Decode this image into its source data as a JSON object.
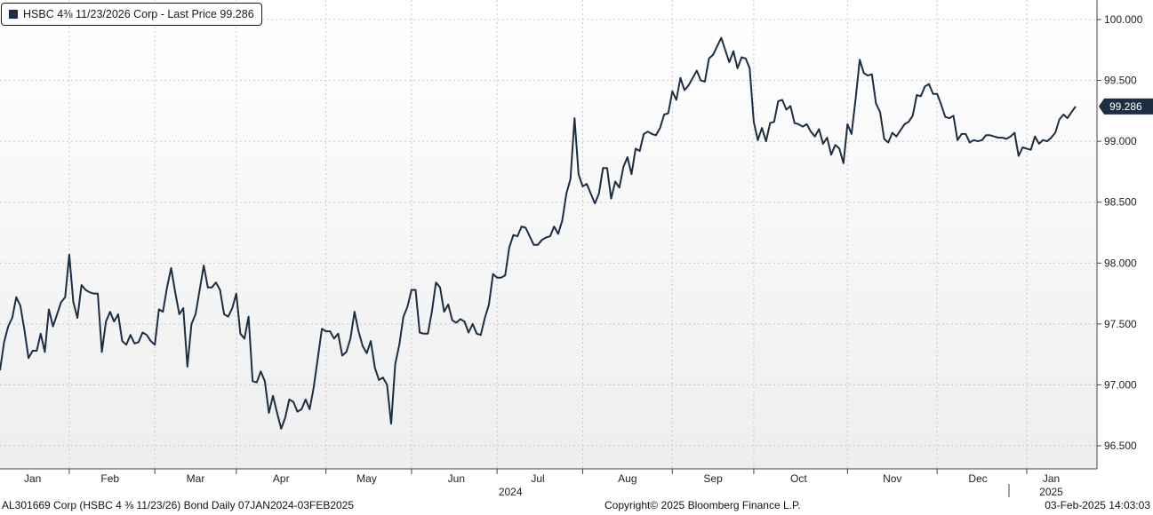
{
  "legend": {
    "label": "HSBC 4⅜ 11/23/2026 Corp - Last Price 99.286",
    "color": "#1c2e44"
  },
  "footer": {
    "left": "AL301669 Corp (HSBC 4 ⅜ 11/23/26) Bond  Daily 07JAN2024-03FEB2025",
    "center": "Copyright© 2025 Bloomberg Finance L.P.",
    "right": "03-Feb-2025 14:03:03"
  },
  "chart_data": {
    "type": "line",
    "ylim": [
      96.4,
      100.1
    ],
    "yticks": [
      96.5,
      97.0,
      97.5,
      98.0,
      98.5,
      99.0,
      99.5,
      100.0
    ],
    "ytick_labels": [
      "96.500",
      "97.000",
      "97.500",
      "98.000",
      "98.500",
      "99.000",
      "99.500",
      "100.000"
    ],
    "month_labels": [
      "Jan",
      "Feb",
      "Mar",
      "Apr",
      "May",
      "Jun",
      "Jul",
      "Aug",
      "Sep",
      "Oct",
      "Nov",
      "Dec",
      "Jan"
    ],
    "year_labels": [
      "2024",
      "2025"
    ],
    "grid": true,
    "last_value": 99.286,
    "last_value_label": "99.286",
    "line_color": "#1c2e44",
    "series": [
      {
        "values": [
          97.12,
          97.35,
          97.48,
          97.55,
          97.72,
          97.65,
          97.45,
          97.22,
          97.28,
          97.28,
          97.42,
          97.27,
          97.62,
          97.48,
          97.58,
          97.68,
          97.72,
          98.07,
          97.68,
          97.55,
          97.82,
          97.78,
          97.76,
          97.75,
          97.75,
          97.27,
          97.52,
          97.6,
          97.52,
          97.58,
          97.36,
          97.33,
          97.41,
          97.34,
          97.35,
          97.43,
          97.41,
          97.36,
          97.33,
          97.62,
          97.6,
          97.8,
          97.96,
          97.76,
          97.58,
          97.63,
          97.15,
          97.5,
          97.58,
          97.78,
          97.98,
          97.8,
          97.8,
          97.84,
          97.78,
          97.58,
          97.56,
          97.63,
          97.75,
          97.42,
          97.38,
          97.56,
          97.03,
          97.02,
          97.11,
          97.03,
          96.77,
          96.91,
          96.77,
          96.64,
          96.73,
          96.88,
          96.86,
          96.78,
          96.8,
          96.88,
          96.8,
          96.98,
          97.22,
          97.46,
          97.44,
          97.44,
          97.38,
          97.42,
          97.24,
          97.27,
          97.38,
          97.6,
          97.44,
          97.32,
          97.26,
          97.36,
          97.14,
          97.04,
          97.06,
          97.0,
          96.68,
          97.17,
          97.33,
          97.56,
          97.64,
          97.78,
          97.78,
          97.43,
          97.42,
          97.42,
          97.6,
          97.84,
          97.8,
          97.6,
          97.66,
          97.53,
          97.51,
          97.54,
          97.52,
          97.43,
          97.5,
          97.42,
          97.41,
          97.55,
          97.66,
          97.91,
          97.88,
          97.88,
          97.9,
          98.13,
          98.23,
          98.22,
          98.3,
          98.29,
          98.22,
          98.15,
          98.15,
          98.19,
          98.21,
          98.22,
          98.3,
          98.24,
          98.35,
          98.57,
          98.69,
          99.19,
          98.73,
          98.63,
          98.65,
          98.57,
          98.49,
          98.57,
          98.78,
          98.78,
          98.53,
          98.67,
          98.62,
          98.79,
          98.87,
          98.73,
          98.94,
          98.92,
          99.06,
          99.08,
          99.06,
          99.05,
          99.11,
          99.22,
          99.23,
          99.41,
          99.34,
          99.52,
          99.42,
          99.46,
          99.52,
          99.58,
          99.5,
          99.49,
          99.68,
          99.71,
          99.78,
          99.85,
          99.75,
          99.65,
          99.74,
          99.6,
          99.69,
          99.68,
          99.6,
          99.16,
          99.01,
          99.11,
          99.0,
          99.15,
          99.16,
          99.33,
          99.34,
          99.26,
          99.29,
          99.15,
          99.14,
          99.12,
          99.14,
          99.08,
          99.04,
          99.1,
          98.98,
          99.03,
          98.89,
          98.97,
          98.94,
          98.82,
          99.14,
          99.06,
          99.35,
          99.67,
          99.56,
          99.54,
          99.55,
          99.31,
          99.24,
          99.02,
          98.99,
          99.07,
          99.04,
          99.09,
          99.14,
          99.16,
          99.21,
          99.38,
          99.37,
          99.45,
          99.47,
          99.39,
          99.39,
          99.3,
          99.2,
          99.19,
          99.21,
          99.01,
          99.06,
          99.06,
          98.99,
          99.01,
          99.0,
          99.01,
          99.05,
          99.05,
          99.04,
          99.03,
          99.03,
          99.02,
          99.04,
          99.07,
          98.88,
          98.95,
          98.94,
          98.93,
          99.04,
          98.98,
          99.01,
          99.0,
          99.03,
          99.07,
          99.18,
          99.22,
          99.19,
          99.24,
          99.286
        ]
      }
    ]
  }
}
